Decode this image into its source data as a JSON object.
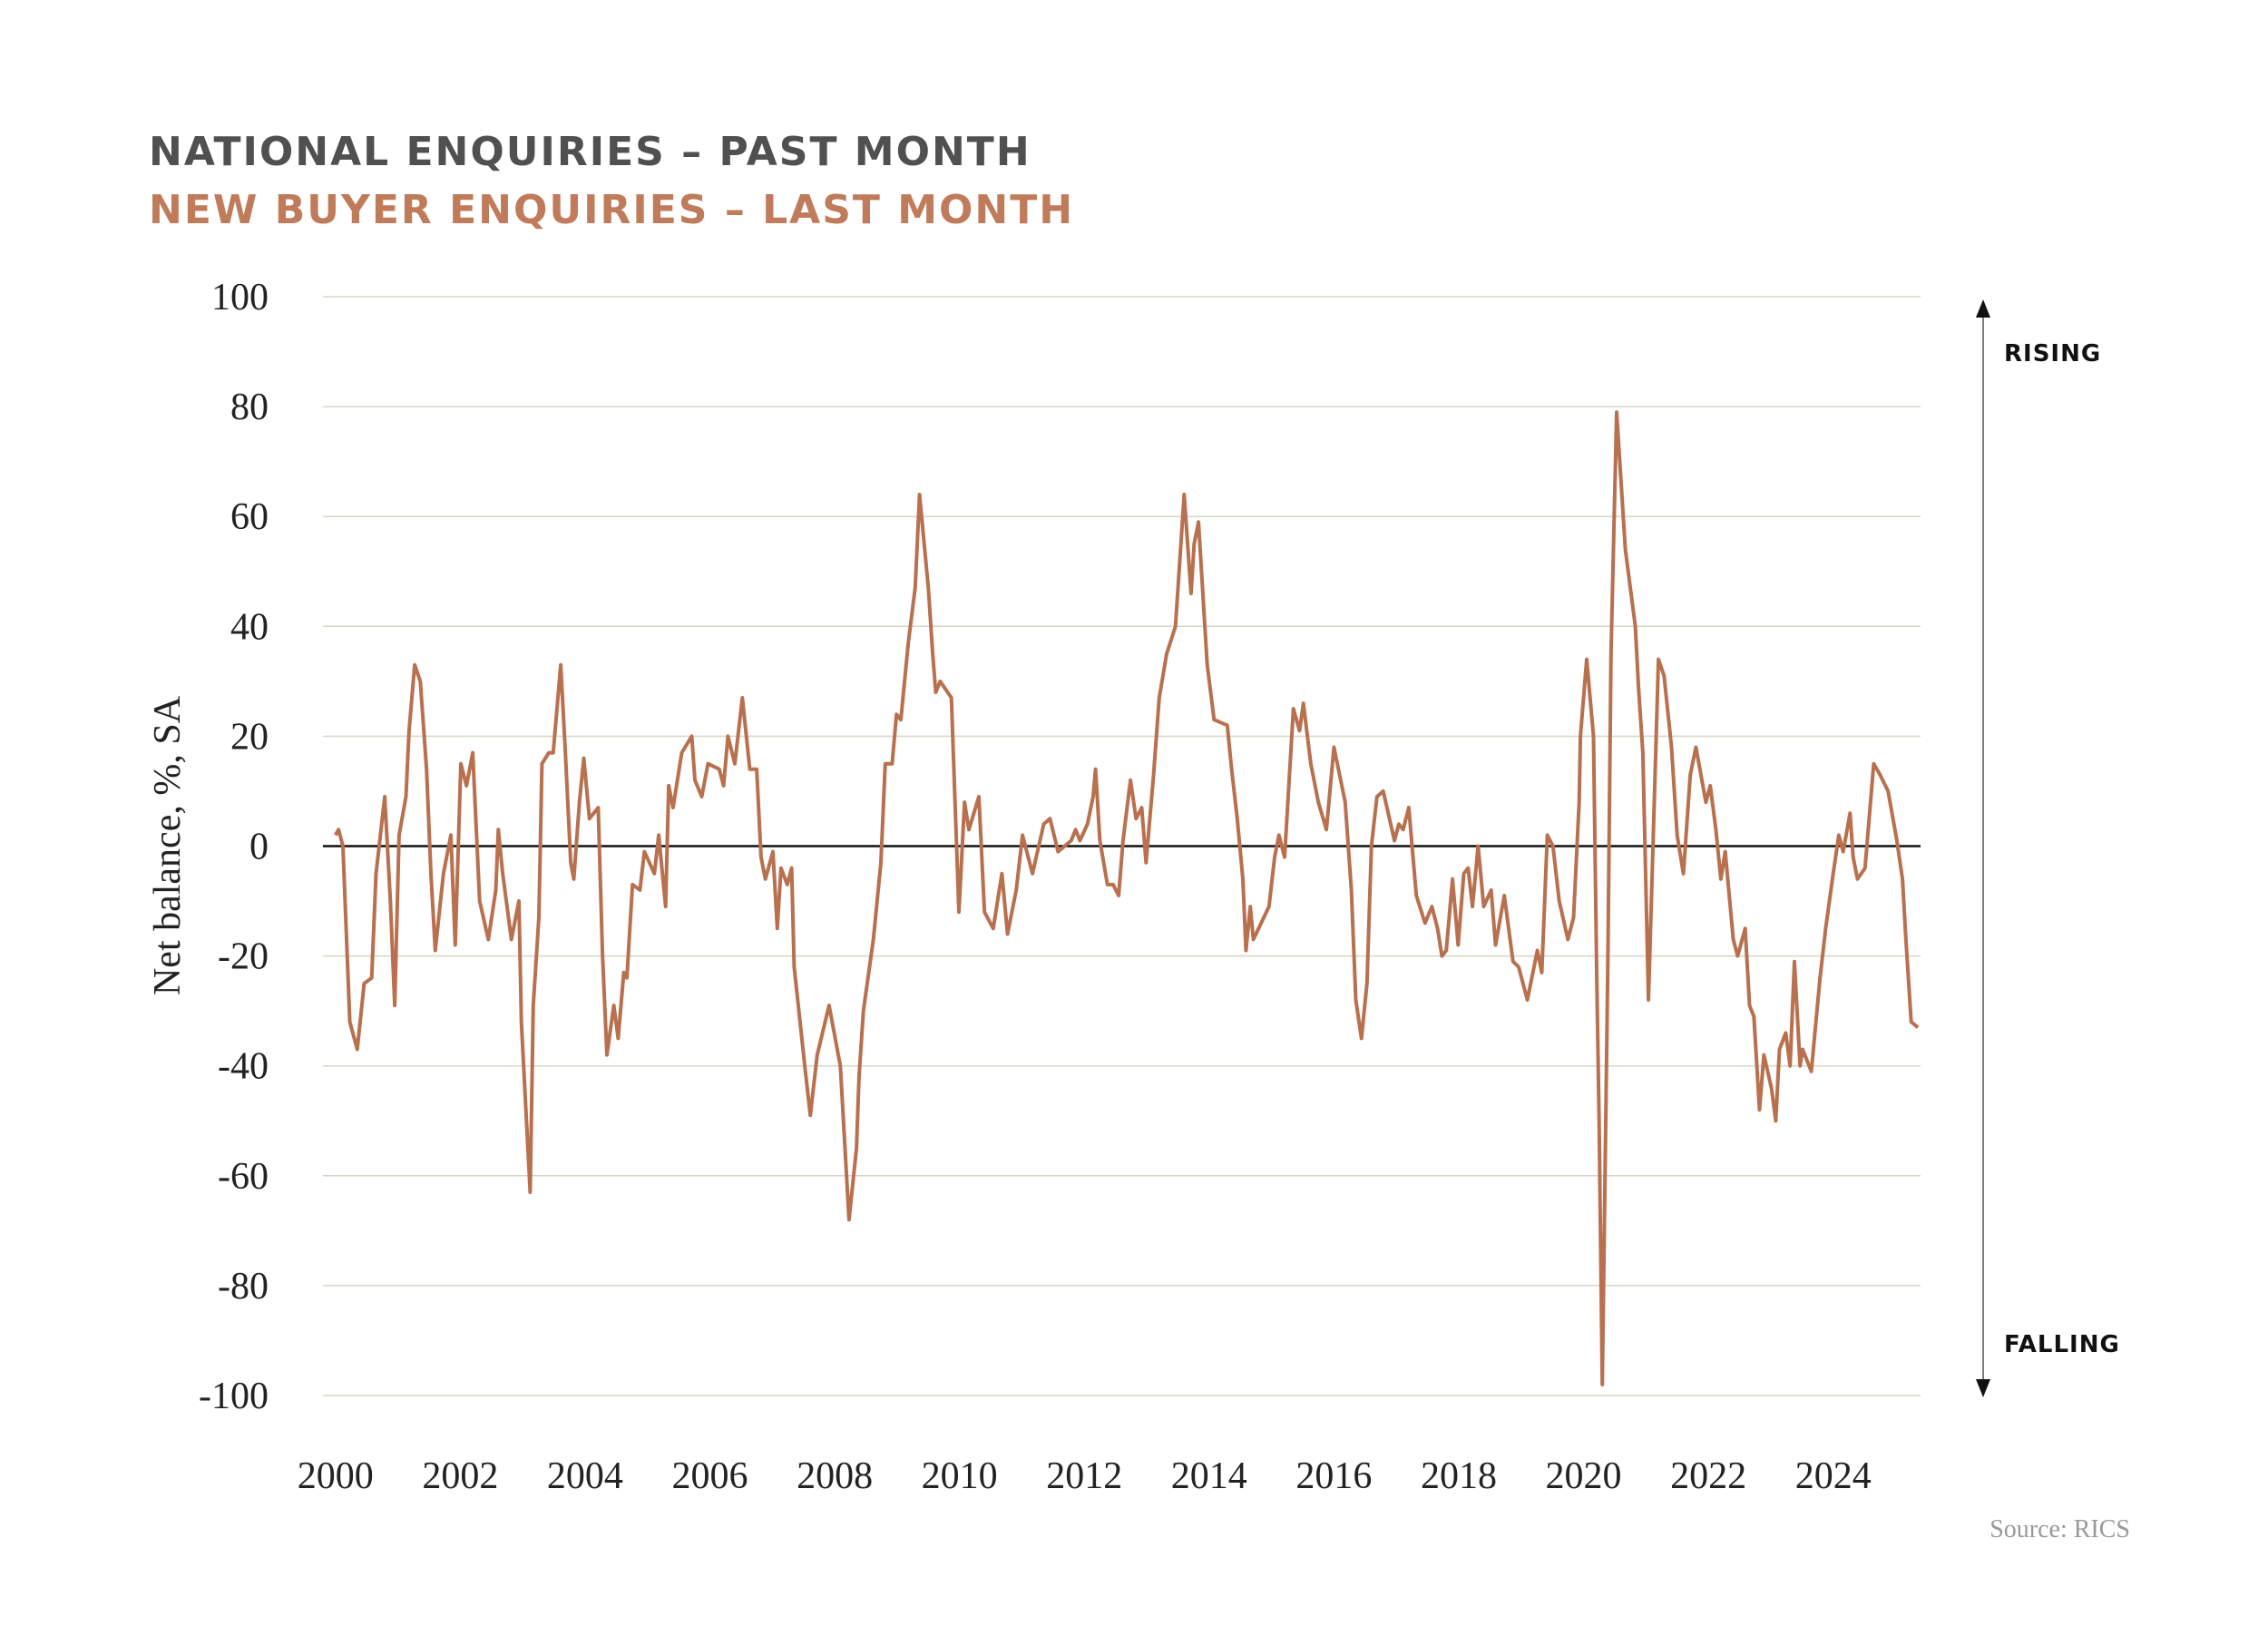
{
  "chart_data": {
    "type": "line",
    "title": "NATIONAL ENQUIRIES – PAST MONTH",
    "subtitle": "NEW BUYER ENQUIRIES – LAST MONTH",
    "y_label": "Net balance, %, SA",
    "annotations": [
      "RISING",
      "FALLING"
    ],
    "source": "Source: RICS",
    "xlim": [
      1999.8,
      2025.4
    ],
    "xticks": [
      2000,
      2002,
      2004,
      2006,
      2008,
      2010,
      2012,
      2014,
      2016,
      2018,
      2020,
      2022,
      2024
    ],
    "ylim": [
      -100,
      100
    ],
    "yticks": [
      -100,
      -80,
      -60,
      -40,
      -20,
      0,
      20,
      40,
      60,
      80,
      100
    ],
    "grid": true,
    "x": [
      2000.0,
      2000.05,
      2000.12,
      2000.23,
      2000.35,
      2000.46,
      2000.58,
      2000.65,
      2000.79,
      2000.88,
      2000.95,
      2001.02,
      2001.13,
      2001.18,
      2001.27,
      2001.36,
      2001.46,
      2001.53,
      2001.6,
      2001.73,
      2001.85,
      2001.92,
      2002.01,
      2002.1,
      2002.2,
      2002.31,
      2002.45,
      2002.57,
      2002.61,
      2002.68,
      2002.82,
      2002.94,
      2002.98,
      2003.12,
      2003.17,
      2003.26,
      2003.31,
      2003.42,
      2003.49,
      2003.61,
      2003.68,
      2003.77,
      2003.82,
      2003.91,
      2003.98,
      2004.07,
      2004.21,
      2004.28,
      2004.35,
      2004.46,
      2004.53,
      2004.62,
      2004.67,
      2004.76,
      2004.88,
      2004.95,
      2005.11,
      2005.18,
      2005.29,
      2005.34,
      2005.41,
      2005.55,
      2005.71,
      2005.76,
      2005.87,
      2005.97,
      2006.15,
      2006.22,
      2006.29,
      2006.4,
      2006.52,
      2006.64,
      2006.75,
      2006.82,
      2006.89,
      2007.01,
      2007.08,
      2007.14,
      2007.24,
      2007.31,
      2007.35,
      2007.52,
      2007.61,
      2007.72,
      2007.91,
      2008.09,
      2008.23,
      2008.35,
      2008.39,
      2008.46,
      2008.62,
      2008.74,
      2008.81,
      2008.92,
      2008.99,
      2009.06,
      2009.18,
      2009.29,
      2009.36,
      2009.5,
      2009.57,
      2009.62,
      2009.69,
      2009.87,
      2009.99,
      2010.08,
      2010.15,
      2010.31,
      2010.4,
      2010.54,
      2010.68,
      2010.77,
      2010.91,
      2011.01,
      2011.17,
      2011.35,
      2011.45,
      2011.58,
      2011.79,
      2011.86,
      2011.93,
      2012.05,
      2012.14,
      2012.18,
      2012.25,
      2012.37,
      2012.46,
      2012.55,
      2012.62,
      2012.74,
      2012.83,
      2012.92,
      2012.99,
      2013.11,
      2013.2,
      2013.32,
      2013.46,
      2013.6,
      2013.71,
      2013.76,
      2013.83,
      2013.97,
      2014.08,
      2014.29,
      2014.36,
      2014.45,
      2014.54,
      2014.59,
      2014.66,
      2014.71,
      2014.96,
      2015.05,
      2015.12,
      2015.21,
      2015.35,
      2015.45,
      2015.51,
      2015.63,
      2015.75,
      2015.88,
      2016.0,
      2016.18,
      2016.28,
      2016.35,
      2016.44,
      2016.53,
      2016.6,
      2016.69,
      2016.79,
      2016.97,
      2017.04,
      2017.11,
      2017.2,
      2017.32,
      2017.46,
      2017.57,
      2017.66,
      2017.73,
      2017.8,
      2017.9,
      2017.99,
      2018.08,
      2018.15,
      2018.22,
      2018.31,
      2018.4,
      2018.52,
      2018.59,
      2018.73,
      2018.87,
      2018.96,
      2019.1,
      2019.26,
      2019.33,
      2019.42,
      2019.51,
      2019.61,
      2019.75,
      2019.84,
      2019.93,
      2019.95,
      2020.05,
      2020.16,
      2020.21,
      2020.25,
      2020.3,
      2020.39,
      2020.44,
      2020.53,
      2020.67,
      2020.83,
      2020.88,
      2020.95,
      2021.04,
      2021.2,
      2021.29,
      2021.41,
      2021.5,
      2021.6,
      2021.71,
      2021.8,
      2021.96,
      2022.03,
      2022.12,
      2022.2,
      2022.27,
      2022.4,
      2022.47,
      2022.59,
      2022.66,
      2022.73,
      2022.82,
      2022.89,
      2023.01,
      2023.08,
      2023.14,
      2023.24,
      2023.31,
      2023.38,
      2023.47,
      2023.51,
      2023.65,
      2023.79,
      2023.88,
      2024.0,
      2024.09,
      2024.16,
      2024.27,
      2024.32,
      2024.39,
      2024.51,
      2024.65,
      2024.75,
      2024.88,
      2025.02,
      2025.11,
      2025.16,
      2025.25,
      2025.36
    ],
    "series": [
      {
        "name": "New buyer enquiries",
        "color": "#b8704f",
        "values": [
          2,
          3,
          0,
          -32,
          -37,
          -25,
          -24,
          -5,
          9,
          -10,
          -29,
          2,
          9,
          21,
          33,
          30,
          14,
          -5,
          -19,
          -5,
          2,
          -18,
          15,
          11,
          17,
          -10,
          -17,
          -8,
          3,
          -5,
          -17,
          -10,
          -32,
          -63,
          -29,
          -13,
          15,
          17,
          17,
          33,
          18,
          -3,
          -6,
          8,
          16,
          5,
          7,
          -20,
          -38,
          -29,
          -35,
          -23,
          -24,
          -7,
          -8,
          -1,
          -5,
          2,
          -11,
          11,
          7,
          17,
          20,
          12,
          9,
          15,
          14,
          11,
          20,
          15,
          27,
          14,
          14,
          -2,
          -6,
          -1,
          -15,
          -4,
          -7,
          -4,
          -22,
          -40,
          -49,
          -38,
          -29,
          -40,
          -68,
          -55,
          -42,
          -30,
          -17,
          -3,
          15,
          15,
          24,
          23,
          37,
          47,
          64,
          47,
          35,
          28,
          30,
          27,
          -12,
          8,
          3,
          9,
          -12,
          -15,
          -5,
          -16,
          -8,
          2,
          -5,
          4,
          5,
          -1,
          1,
          3,
          1,
          4,
          9,
          14,
          1,
          -7,
          -7,
          -9,
          1,
          12,
          5,
          7,
          -3,
          13,
          27,
          35,
          40,
          64,
          46,
          55,
          59,
          33,
          23,
          22,
          14,
          5,
          -6,
          -19,
          -11,
          -17,
          -11,
          -2,
          2,
          -2,
          25,
          21,
          26,
          15,
          8,
          3,
          18,
          8,
          -8,
          -28,
          -35,
          -25,
          0,
          9,
          10,
          1,
          4,
          3,
          7,
          -9,
          -14,
          -11,
          -15,
          -20,
          -19,
          -6,
          -18,
          -5,
          -4,
          -11,
          0,
          -11,
          -8,
          -18,
          -9,
          -21,
          -22,
          -28,
          -19,
          -23,
          2,
          0,
          -10,
          -17,
          -13,
          8,
          20,
          34,
          20,
          -23,
          -50,
          -98,
          -20,
          35,
          79,
          54,
          40,
          29,
          17,
          -28,
          34,
          31,
          18,
          2,
          -5,
          13,
          18,
          8,
          11,
          3,
          -6,
          -1,
          -17,
          -20,
          -15,
          -29,
          -31,
          -48,
          -38,
          -44,
          -50,
          -37,
          -34,
          -40,
          -21,
          -40,
          -37,
          -41,
          -24,
          -15,
          -5,
          2,
          -1,
          6,
          -2,
          -6,
          -4,
          15,
          13,
          10,
          1,
          -6,
          -16,
          -32,
          -33
        ]
      }
    ]
  }
}
